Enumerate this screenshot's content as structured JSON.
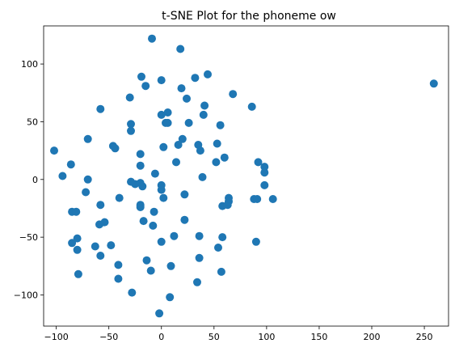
{
  "chart_data": {
    "type": "scatter",
    "title": "t-SNE Plot for the phoneme ow",
    "xlabel": "",
    "ylabel": "",
    "xlim": [
      -112,
      273
    ],
    "ylim": [
      -127,
      133
    ],
    "xticks": [
      -100,
      -50,
      0,
      50,
      100,
      150,
      200,
      250
    ],
    "yticks": [
      -100,
      -50,
      0,
      50,
      100
    ],
    "grid": false,
    "marker_color": "#1f77b4",
    "points": [
      [
        -102,
        25
      ],
      [
        -94,
        3
      ],
      [
        -86,
        13
      ],
      [
        -85,
        -28
      ],
      [
        -81,
        -28
      ],
      [
        -85,
        -55
      ],
      [
        -80,
        -51
      ],
      [
        -80,
        -61
      ],
      [
        -79,
        -82
      ],
      [
        -72,
        -11
      ],
      [
        -70,
        0
      ],
      [
        -70,
        35
      ],
      [
        -63,
        -58
      ],
      [
        -59,
        -39
      ],
      [
        -58,
        -22
      ],
      [
        -58,
        -66
      ],
      [
        -58,
        61
      ],
      [
        -54,
        -37
      ],
      [
        -48,
        -57
      ],
      [
        -46,
        29
      ],
      [
        -44,
        27
      ],
      [
        -41,
        -74
      ],
      [
        -41,
        -86
      ],
      [
        -40,
        -16
      ],
      [
        -30,
        71
      ],
      [
        -29,
        48
      ],
      [
        -29,
        42
      ],
      [
        -29,
        -2
      ],
      [
        -28,
        -98
      ],
      [
        -25,
        -4
      ],
      [
        -20,
        -24
      ],
      [
        -20,
        -22
      ],
      [
        -20,
        -3
      ],
      [
        -20,
        12
      ],
      [
        -20,
        22
      ],
      [
        -19,
        89
      ],
      [
        -18,
        -6
      ],
      [
        -17,
        -36
      ],
      [
        -15,
        81
      ],
      [
        -14,
        -70
      ],
      [
        -10,
        -79
      ],
      [
        -9,
        122
      ],
      [
        -8,
        -40
      ],
      [
        -7,
        -28
      ],
      [
        -6,
        5
      ],
      [
        -2,
        -116
      ],
      [
        0,
        86
      ],
      [
        0,
        56
      ],
      [
        0,
        -54
      ],
      [
        0,
        -9
      ],
      [
        0,
        -5
      ],
      [
        2,
        28
      ],
      [
        2,
        -16
      ],
      [
        4,
        49
      ],
      [
        6,
        58
      ],
      [
        6,
        49
      ],
      [
        8,
        -102
      ],
      [
        9,
        -75
      ],
      [
        12,
        -49
      ],
      [
        14,
        15
      ],
      [
        16,
        30
      ],
      [
        18,
        113
      ],
      [
        19,
        79
      ],
      [
        20,
        35
      ],
      [
        22,
        -35
      ],
      [
        22,
        -13
      ],
      [
        24,
        70
      ],
      [
        26,
        49
      ],
      [
        32,
        88
      ],
      [
        34,
        -89
      ],
      [
        35,
        30
      ],
      [
        36,
        -49
      ],
      [
        36,
        -68
      ],
      [
        37,
        25
      ],
      [
        39,
        2
      ],
      [
        40,
        56
      ],
      [
        41,
        64
      ],
      [
        44,
        91
      ],
      [
        52,
        15
      ],
      [
        53,
        31
      ],
      [
        54,
        -59
      ],
      [
        56,
        47
      ],
      [
        57,
        -80
      ],
      [
        58,
        -23
      ],
      [
        58,
        -50
      ],
      [
        60,
        19
      ],
      [
        63,
        -22
      ],
      [
        64,
        -16
      ],
      [
        64,
        -19
      ],
      [
        68,
        74
      ],
      [
        86,
        63
      ],
      [
        88,
        -17
      ],
      [
        90,
        -54
      ],
      [
        91,
        -17
      ],
      [
        92,
        15
      ],
      [
        98,
        11
      ],
      [
        98,
        6
      ],
      [
        98,
        -5
      ],
      [
        106,
        -17
      ],
      [
        259,
        83
      ]
    ]
  }
}
